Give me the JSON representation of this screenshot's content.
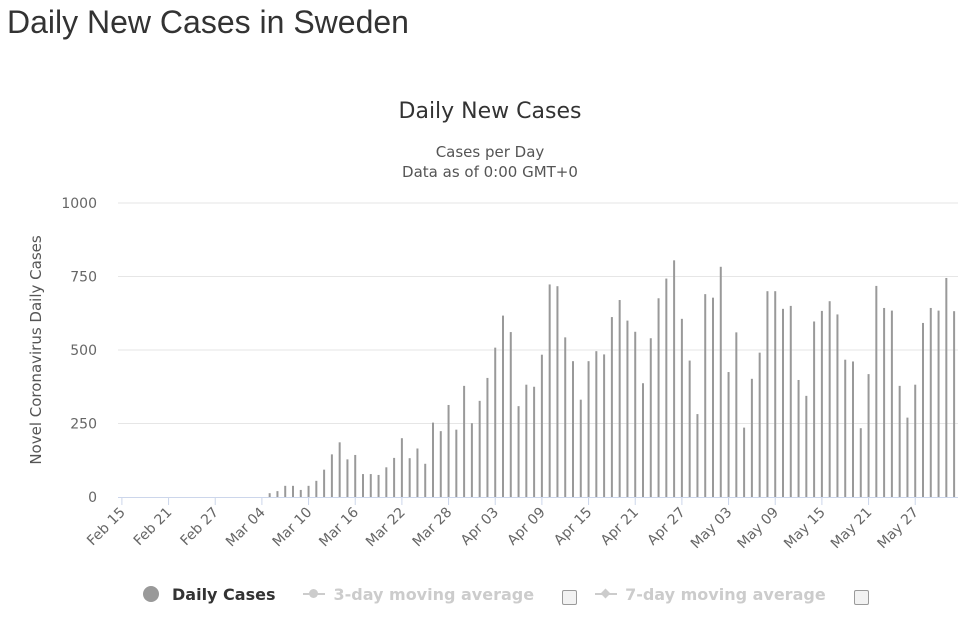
{
  "page": {
    "title": "Daily New Cases in Sweden"
  },
  "chart_data": {
    "type": "bar",
    "title": "Daily New Cases",
    "subtitle_lines": [
      "Cases per Day",
      "Data as of 0:00 GMT+0"
    ],
    "ylabel": "Novel Coronavirus Daily Cases",
    "xlabel": "",
    "ylim": [
      0,
      1000
    ],
    "yticks": [
      "0",
      "250",
      "500",
      "750",
      "1000"
    ],
    "x_tick_labels": [
      "Feb 15",
      "Feb 21",
      "Feb 27",
      "Mar 04",
      "Mar 10",
      "Mar 16",
      "Mar 22",
      "Mar 28",
      "Apr 03",
      "Apr 09",
      "Apr 15",
      "Apr 21",
      "Apr 27",
      "May 03",
      "May 09",
      "May 15",
      "May 21",
      "May 27"
    ],
    "x_tick_every": 6,
    "grid": true,
    "bar_color": "#999999",
    "series": [
      {
        "name": "Daily Cases",
        "values": [
          0,
          0,
          0,
          0,
          0,
          0,
          0,
          0,
          0,
          0,
          0,
          0,
          0,
          0,
          0,
          0,
          0,
          0,
          0,
          13,
          20,
          38,
          38,
          24,
          38,
          55,
          93,
          145,
          186,
          128,
          143,
          78,
          78,
          75,
          101,
          133,
          200,
          132,
          165,
          113,
          253,
          224,
          313,
          229,
          378,
          251,
          327,
          405,
          508,
          617,
          561,
          309,
          382,
          375,
          484,
          723,
          717,
          543,
          462,
          331,
          462,
          496,
          485,
          612,
          670,
          600,
          562,
          387,
          540,
          676,
          743,
          805,
          606,
          464,
          282,
          690,
          678,
          783,
          425,
          560,
          236,
          402,
          491,
          700,
          700,
          640,
          650,
          398,
          344,
          597,
          633,
          666,
          621,
          467,
          461,
          234,
          418,
          718,
          643,
          634,
          378,
          270,
          382,
          592,
          643,
          634,
          745,
          632
        ]
      }
    ],
    "legend": {
      "placement": "bottom",
      "items": [
        {
          "label": "Daily Cases",
          "color": "#999999",
          "enabled": true
        },
        {
          "label": "3-day moving average",
          "color": "#cccccc",
          "enabled": false
        },
        {
          "label": "7-day moving average",
          "color": "#cccccc",
          "enabled": false
        }
      ]
    }
  }
}
